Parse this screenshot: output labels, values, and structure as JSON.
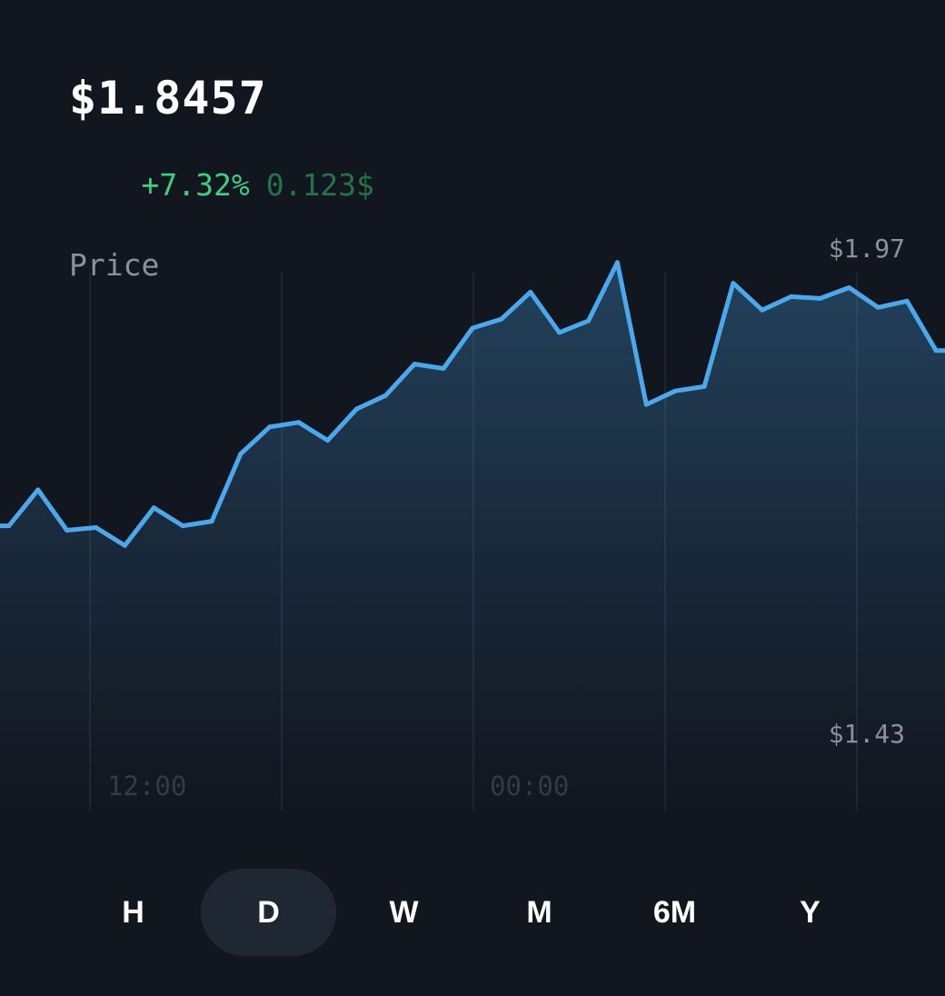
{
  "price": {
    "value": "$1.8457",
    "change_percent": "+7.32%",
    "change_absolute": "0.123$",
    "label": "Price"
  },
  "colors": {
    "background": "#12161f",
    "line": "#4aa9ec",
    "positive": "#3dcf7c",
    "positive_dim": "#24744a",
    "active_range_bg": "#1f2733"
  },
  "chart_data": {
    "type": "area",
    "ylim": [
      1.43,
      1.97
    ],
    "y_tick_labels": [
      "$1.97",
      "$1.43"
    ],
    "x_tick_labels": [
      "12:00",
      "00:00"
    ],
    "grid": "vertical lines only",
    "values": [
      1.66,
      1.66,
      1.7,
      1.655,
      1.658,
      1.638,
      1.68,
      1.66,
      1.665,
      1.74,
      1.77,
      1.775,
      1.755,
      1.79,
      1.805,
      1.84,
      1.835,
      1.88,
      1.89,
      1.92,
      1.875,
      1.888,
      1.953,
      1.795,
      1.81,
      1.815,
      1.93,
      1.9,
      1.915,
      1.913,
      1.925,
      1.903,
      1.91,
      1.855,
      1.855
    ]
  },
  "time_ranges": [
    {
      "label": "H",
      "active": false
    },
    {
      "label": "D",
      "active": true
    },
    {
      "label": "W",
      "active": false
    },
    {
      "label": "M",
      "active": false
    },
    {
      "label": "6M",
      "active": false
    },
    {
      "label": "Y",
      "active": false
    }
  ]
}
